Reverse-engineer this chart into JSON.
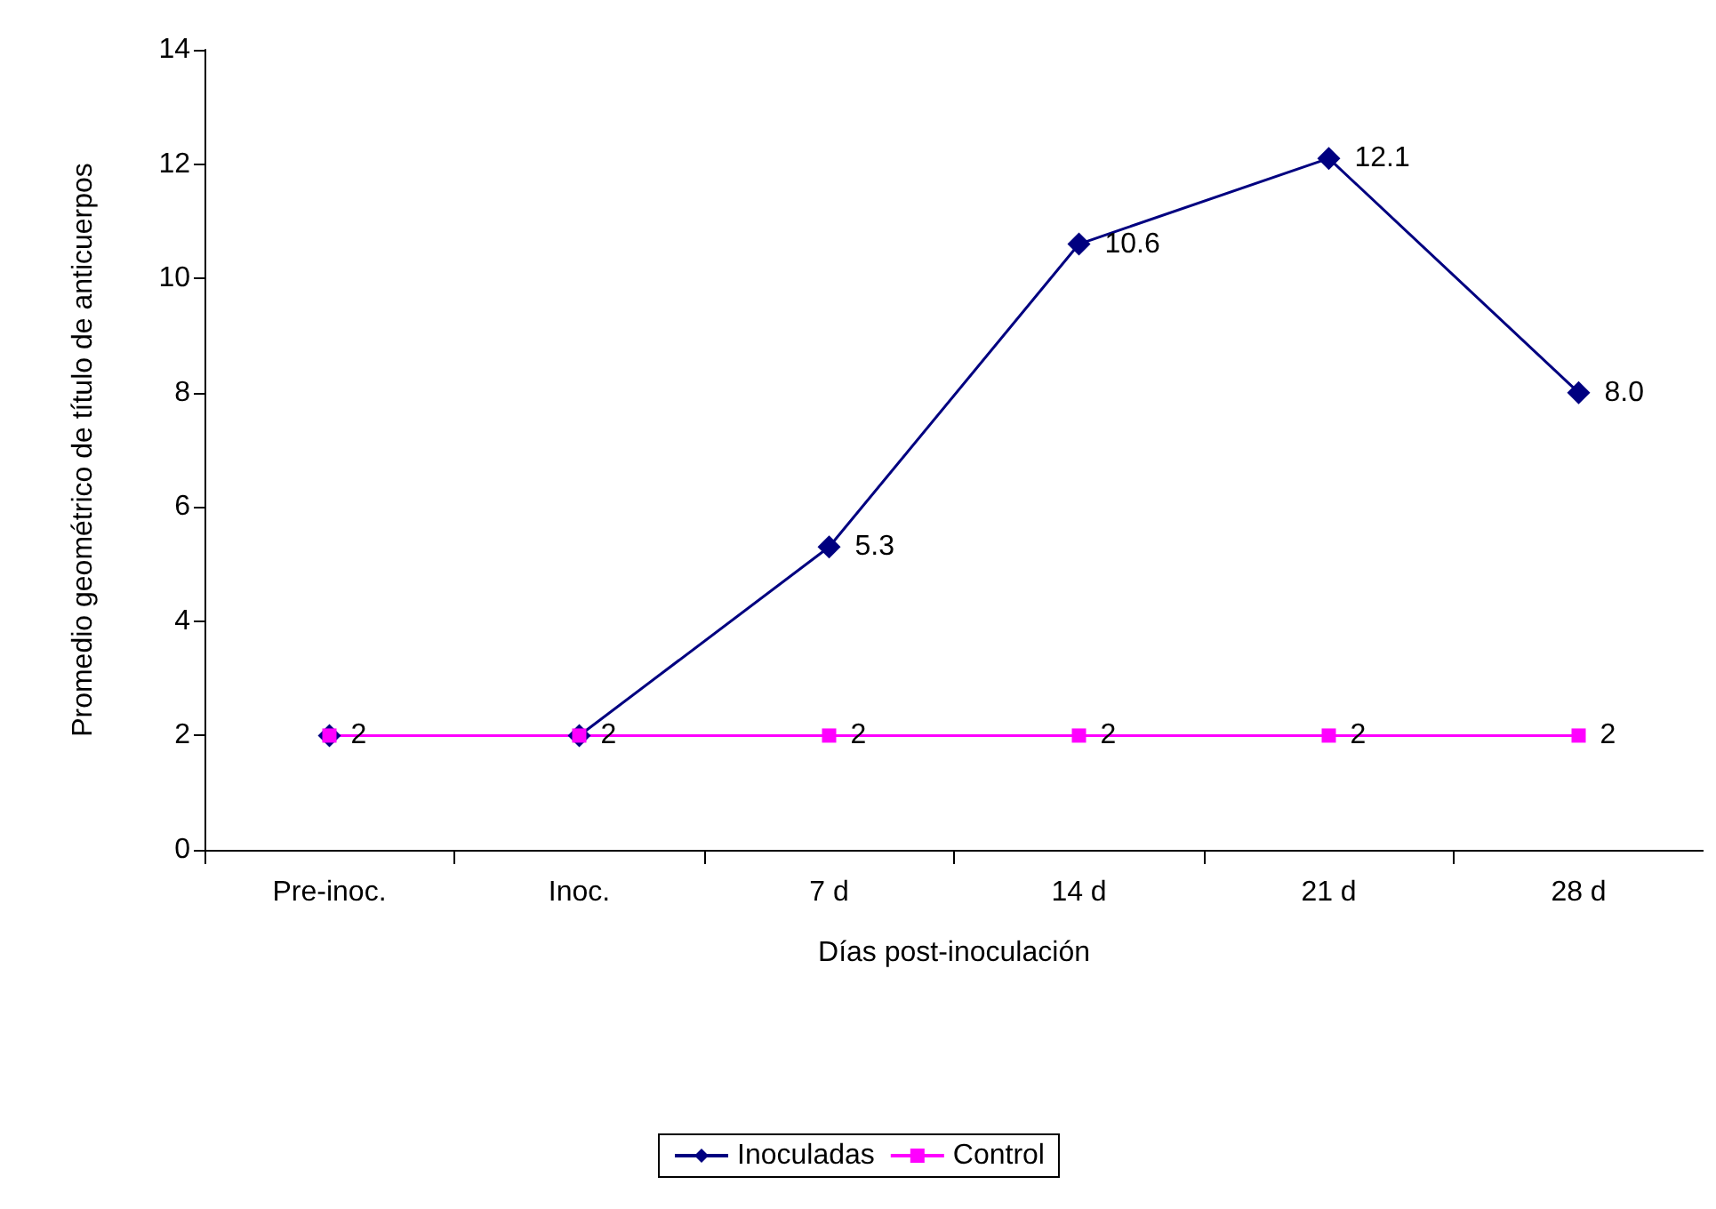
{
  "chart_data": {
    "type": "line",
    "xlabel": "Días post-inoculación",
    "ylabel": "Promedio geométrico de título de anticuerpos",
    "categories": [
      "Pre-inoc.",
      "Inoc.",
      "7 d",
      "14 d",
      "21 d",
      "28 d"
    ],
    "series": [
      {
        "name": "Inoculadas",
        "color": "#000080",
        "marker": "diamond",
        "values": [
          2,
          2,
          5.3,
          10.6,
          12.1,
          8.0
        ],
        "value_labels": [
          null,
          null,
          "5.3",
          "10.6",
          "12.1",
          "8.0"
        ]
      },
      {
        "name": "Control",
        "color": "#ff00ff",
        "marker": "square",
        "values": [
          2,
          2,
          2,
          2,
          2,
          2
        ],
        "value_labels": [
          "2",
          "2",
          "2",
          "2",
          "2",
          "2"
        ]
      }
    ],
    "ylim": [
      0,
      14
    ],
    "yticks": [
      0,
      2,
      4,
      6,
      8,
      10,
      12,
      14
    ],
    "grid": false,
    "legend": "bottom",
    "line_style": "solid"
  }
}
